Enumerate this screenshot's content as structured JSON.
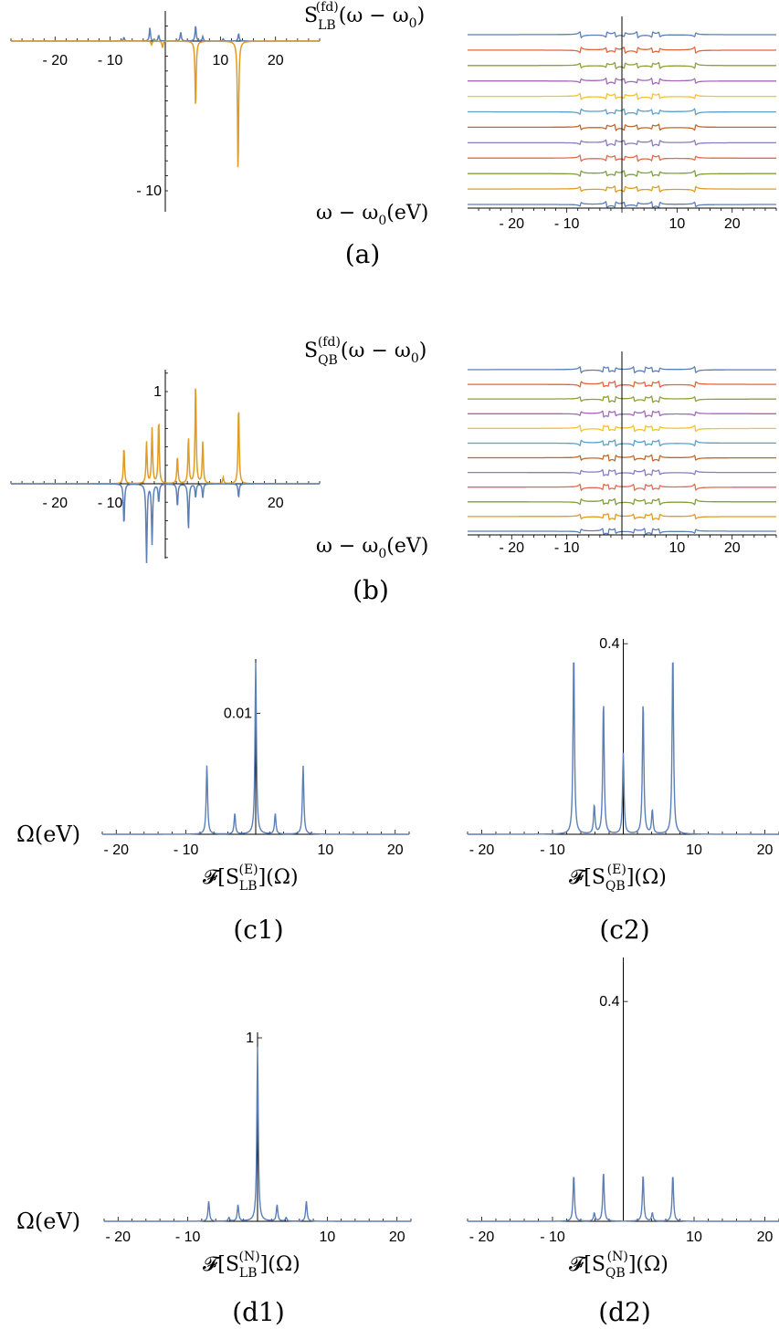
{
  "colors": {
    "blue": "#5b7fb6",
    "orange": "#e09b22",
    "waterfall_palette": [
      "#5b7fb6",
      "#e09b22",
      "#7ea13a",
      "#e16a4f",
      "#8a7cbf",
      "#c0682a",
      "#5aa0c8",
      "#f1c232",
      "#a569b8",
      "#8da03a",
      "#e3643d"
    ]
  },
  "chart_data": [
    {
      "id": "a-left",
      "type": "line",
      "xlim": [
        -28,
        28
      ],
      "ylim": [
        -10.8,
        1.4
      ],
      "xticks": [
        -20,
        -10,
        10,
        20
      ],
      "xtick_labels": [
        "- 20",
        "- 10",
        "10",
        "20"
      ],
      "yticks": [
        -10
      ],
      "ytick_labels": [
        "- 10"
      ],
      "grid": false,
      "series": [
        {
          "color": "blue",
          "peaks": [
            [
              -7.5,
              0.25
            ],
            [
              -2.8,
              0.9
            ],
            [
              -1.2,
              0.4
            ],
            [
              2.8,
              0.6
            ],
            [
              5.5,
              1.05
            ],
            [
              6.8,
              0.3
            ],
            [
              10.5,
              0.15
            ],
            [
              13.3,
              0.5
            ]
          ]
        },
        {
          "color": "orange",
          "peaks": [
            [
              -2.5,
              -0.25
            ],
            [
              -0.5,
              -0.45
            ],
            [
              5.5,
              -4.5
            ],
            [
              13.2,
              -8.9
            ]
          ]
        }
      ]
    },
    {
      "id": "a-right",
      "type": "line",
      "xlim": [
        -28,
        28
      ],
      "xticks": [
        -20,
        -10,
        10,
        20
      ],
      "xtick_labels": [
        "- 20",
        "- 10",
        "10",
        "20"
      ],
      "n_traces": 12,
      "features": [
        -7.5,
        -2.8,
        -1.2,
        0.5,
        2.8,
        5.5,
        6.8,
        13.3
      ]
    },
    {
      "id": "b-left",
      "type": "line",
      "xlim": [
        -28,
        28
      ],
      "ylim": [
        -0.9,
        1.25
      ],
      "xticks": [
        -20,
        -10,
        20
      ],
      "xtick_labels": [
        "- 20",
        "- 10",
        "20"
      ],
      "yticks": [
        1
      ],
      "ytick_labels": [
        "1"
      ],
      "grid": false,
      "series": [
        {
          "color": "orange",
          "peaks": [
            [
              -7.5,
              0.4
            ],
            [
              -3.4,
              0.45
            ],
            [
              -2.4,
              0.6
            ],
            [
              -1.2,
              0.7
            ],
            [
              2.2,
              0.3
            ],
            [
              4.2,
              0.5
            ],
            [
              5.5,
              1.1
            ],
            [
              6.8,
              0.45
            ],
            [
              10.5,
              0.07
            ],
            [
              13.3,
              0.85
            ]
          ]
        },
        {
          "color": "blue",
          "peaks": [
            [
              -7.5,
              -0.45
            ],
            [
              -3.4,
              -0.85
            ],
            [
              -2.4,
              -0.65
            ],
            [
              -1.2,
              -0.2
            ],
            [
              2.2,
              -0.25
            ],
            [
              4.2,
              -0.5
            ],
            [
              5.5,
              -0.15
            ],
            [
              6.8,
              -0.15
            ],
            [
              13.3,
              -0.15
            ]
          ]
        }
      ]
    },
    {
      "id": "b-right",
      "type": "line",
      "xlim": [
        -28,
        28
      ],
      "xticks": [
        -20,
        -10,
        10,
        20
      ],
      "xtick_labels": [
        "- 20",
        "- 10",
        "10",
        "20"
      ],
      "n_traces": 12,
      "features": [
        -7.5,
        -3.4,
        -2.4,
        -1.2,
        2.2,
        4.2,
        5.5,
        6.8,
        13.3
      ]
    },
    {
      "id": "c1",
      "type": "line",
      "xlim": [
        -22,
        22
      ],
      "ylim": [
        0,
        0.0145
      ],
      "xticks": [
        -20,
        -10,
        10,
        20
      ],
      "xtick_labels": [
        "- 20",
        "- 10",
        "10",
        "20"
      ],
      "yticks": [
        0.01
      ],
      "ytick_labels": [
        "0.01"
      ],
      "grid": false,
      "series": [
        {
          "color": "blue",
          "peaks": [
            [
              -7.0,
              0.0057
            ],
            [
              -3.0,
              0.0017
            ],
            [
              2.8,
              0.0017
            ],
            [
              6.8,
              0.0057
            ],
            [
              0.0,
              0.0142
            ]
          ]
        }
      ]
    },
    {
      "id": "c2",
      "type": "line",
      "xlim": [
        -22,
        22
      ],
      "ylim": [
        0,
        0.41
      ],
      "xticks": [
        -20,
        -10,
        10,
        20
      ],
      "xtick_labels": [
        "- 20",
        "- 10",
        "10",
        "20"
      ],
      "yticks": [
        0.4
      ],
      "ytick_labels": [
        "0.4"
      ],
      "grid": false,
      "series": [
        {
          "color": "blue",
          "peaks": [
            [
              -7.0,
              0.385
            ],
            [
              -4.1,
              0.06
            ],
            [
              -2.8,
              0.28
            ],
            [
              0.0,
              0.17
            ],
            [
              2.8,
              0.28
            ],
            [
              4.1,
              0.05
            ],
            [
              7.0,
              0.385
            ]
          ]
        }
      ]
    },
    {
      "id": "d1",
      "type": "line",
      "xlim": [
        -22,
        22
      ],
      "ylim": [
        0,
        1.03
      ],
      "xticks": [
        -20,
        -10,
        10,
        20
      ],
      "xtick_labels": [
        "- 20",
        "- 10",
        "10",
        "20"
      ],
      "yticks": [
        1
      ],
      "ytick_labels": [
        "1"
      ],
      "grid": false,
      "series": [
        {
          "color": "blue",
          "peaks": [
            [
              -7.0,
              0.11
            ],
            [
              -4.1,
              0.02
            ],
            [
              -2.8,
              0.09
            ],
            [
              0.0,
              0.95
            ],
            [
              2.8,
              0.09
            ],
            [
              4.1,
              0.02
            ],
            [
              7.0,
              0.11
            ]
          ]
        }
      ]
    },
    {
      "id": "d2",
      "type": "line",
      "xlim": [
        -22,
        22
      ],
      "ylim": [
        0,
        0.48
      ],
      "xticks": [
        -20,
        -10,
        10,
        20
      ],
      "xtick_labels": [
        "- 20",
        "- 10",
        "10",
        "20"
      ],
      "yticks": [
        0.4
      ],
      "ytick_labels": [
        "0.4"
      ],
      "grid": false,
      "series": [
        {
          "color": "blue",
          "peaks": [
            [
              -7.0,
              0.085
            ],
            [
              -4.1,
              0.015
            ],
            [
              -2.8,
              0.09
            ],
            [
              0.0,
              0.0
            ],
            [
              2.8,
              0.085
            ],
            [
              4.1,
              0.015
            ],
            [
              7.0,
              0.085
            ]
          ]
        }
      ]
    }
  ],
  "labels": {
    "ylabel_a": "S",
    "ylabel_a_sub": "LB",
    "ylabel_a_sup": "(fd)",
    "ylabel_a_arg": "(ω − ω",
    "ylabel_a_arg_sub": "0",
    "ylabel_a_arg_end": ")",
    "xlabel_a": "ω − ω",
    "xlabel_a_sub": "0",
    "xlabel_a_end": "(eV)",
    "ylabel_b": "S",
    "ylabel_b_sub": "QB",
    "ylabel_b_sup": "(fd)",
    "ylabel_b_arg": "(ω − ω",
    "ylabel_b_arg_sub": "0",
    "ylabel_b_arg_end": ")",
    "xlabel_b": "ω − ω",
    "xlabel_b_sub": "0",
    "xlabel_b_end": "(eV)",
    "omega_c": "Ω(eV)",
    "omega_d": "Ω(eV)",
    "c1_xlabel": "𝓕[S",
    "c1_xlabel_sub": "LB",
    "c1_xlabel_sup": "(E)",
    "c1_xlabel_end": "](Ω)",
    "c2_xlabel": "𝓕[S",
    "c2_xlabel_sub": "QB",
    "c2_xlabel_sup": "(E)",
    "c2_xlabel_end": "](Ω)",
    "d1_xlabel": "𝓕[S",
    "d1_xlabel_sub": "LB",
    "d1_xlabel_sup": "(N)",
    "d1_xlabel_end": "](Ω)",
    "d2_xlabel": "𝓕[S",
    "d2_xlabel_sub": "QB",
    "d2_xlabel_sup": "(N)",
    "d2_xlabel_end": "](Ω)"
  },
  "captions": {
    "a": "(a)",
    "b": "(b)",
    "c1": "(c1)",
    "c2": "(c2)",
    "d1": "(d1)",
    "d2": "(d2)"
  }
}
